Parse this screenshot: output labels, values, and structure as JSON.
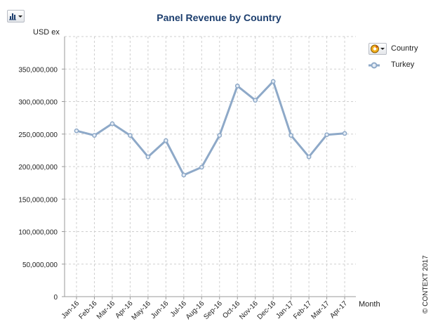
{
  "toolbar": {
    "chart_type_icon": "bar-chart-icon"
  },
  "legend": {
    "title": "Country",
    "toggle_icon": "palette-icon"
  },
  "footer": {
    "copyright": "© CONTEXT 2017"
  },
  "colors": {
    "series": "#8ea9c8",
    "marker_fill": "#e7eef6",
    "grid": "#cfcfcf",
    "axis": "#999999",
    "title": "#1c3e6e"
  },
  "chart_data": {
    "type": "line",
    "title": "Panel Revenue by Country",
    "ylabel": "USD ex",
    "xlabel": "Month",
    "ylim": [
      0,
      400000000
    ],
    "yticks": [
      0,
      50000000,
      100000000,
      150000000,
      200000000,
      250000000,
      300000000,
      350000000
    ],
    "ytick_labels": [
      "0",
      "50,000,000",
      "100,000,000",
      "150,000,000",
      "200,000,000",
      "250,000,000",
      "300,000,000",
      "350,000,000"
    ],
    "categories": [
      "Jan-16",
      "Feb-16",
      "Mar-16",
      "Apr-16",
      "May-16",
      "Jun-16",
      "Jul-16",
      "Aug-16",
      "Sep-16",
      "Oct-16",
      "Nov-16",
      "Dec-16",
      "Jan-17",
      "Feb-17",
      "Mar-17",
      "Apr-17"
    ],
    "series": [
      {
        "name": "Turkey",
        "values": [
          255000000,
          248000000,
          266000000,
          248000000,
          215000000,
          240000000,
          187000000,
          199000000,
          248000000,
          324000000,
          302000000,
          331000000,
          248000000,
          215000000,
          249000000,
          251000000
        ]
      }
    ],
    "grid": true,
    "legend_position": "top-right"
  }
}
